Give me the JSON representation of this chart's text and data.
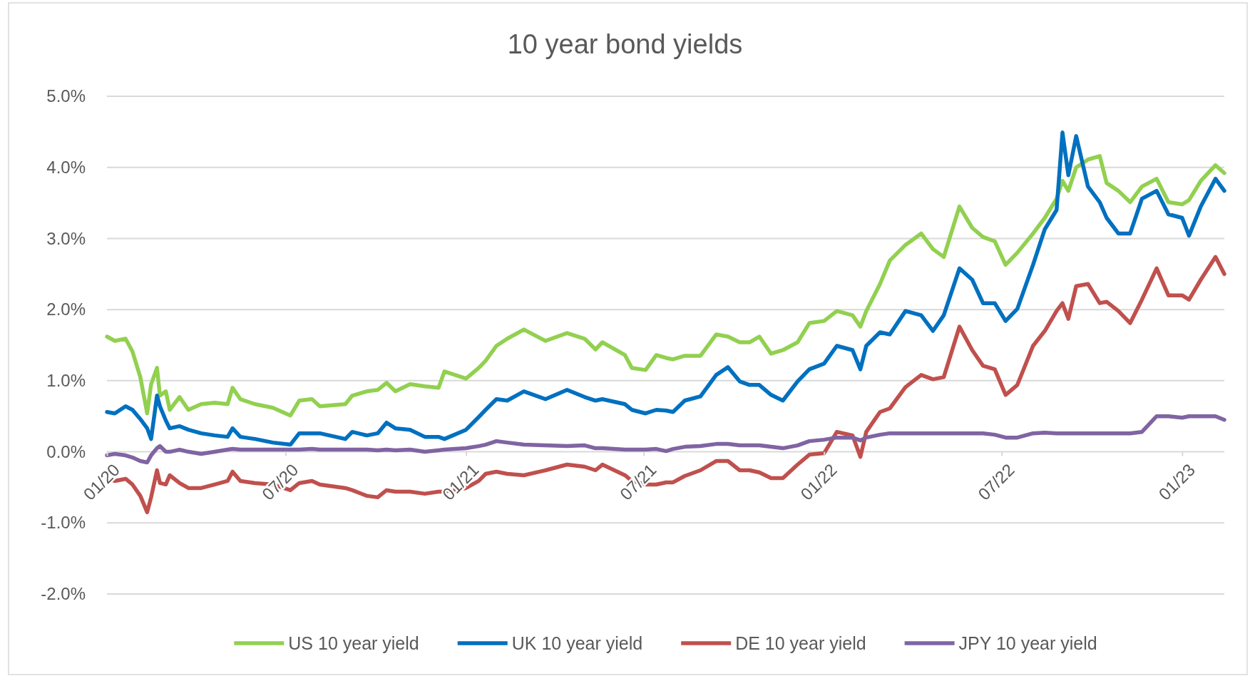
{
  "chart_data": {
    "type": "line",
    "title": "10 year bond yields",
    "x": [
      "2020-01-01",
      "2020-01-09",
      "2020-01-20",
      "2020-01-27",
      "2020-02-04",
      "2020-02-11",
      "2020-02-15",
      "2020-02-21",
      "2020-02-24",
      "2020-03-01",
      "2020-03-05",
      "2020-03-15",
      "2020-03-24",
      "2020-04-06",
      "2020-04-20",
      "2020-05-03",
      "2020-05-08",
      "2020-05-16",
      "2020-05-31",
      "2020-06-18",
      "2020-07-06",
      "2020-07-15",
      "2020-07-28",
      "2020-08-05",
      "2020-08-31",
      "2020-09-07",
      "2020-09-22",
      "2020-10-03",
      "2020-10-12",
      "2020-10-21",
      "2020-11-05",
      "2020-11-20",
      "2020-12-04",
      "2020-12-10",
      "2021-01-01",
      "2021-01-14",
      "2021-01-21",
      "2021-02-01",
      "2021-02-12",
      "2021-03-01",
      "2021-03-23",
      "2021-04-14",
      "2021-05-02",
      "2021-05-13",
      "2021-05-20",
      "2021-06-12",
      "2021-06-19",
      "2021-07-03",
      "2021-07-14",
      "2021-07-24",
      "2021-07-31",
      "2021-08-12",
      "2021-08-28",
      "2021-09-13",
      "2021-09-25",
      "2021-10-07",
      "2021-10-17",
      "2021-10-27",
      "2021-11-08",
      "2021-11-20",
      "2021-12-05",
      "2021-12-17",
      "2022-01-01",
      "2022-01-14",
      "2022-01-30",
      "2022-02-07",
      "2022-02-13",
      "2022-02-27",
      "2022-03-09",
      "2022-03-25",
      "2022-04-10",
      "2022-04-22",
      "2022-05-03",
      "2022-05-19",
      "2022-06-01",
      "2022-06-12",
      "2022-06-24",
      "2022-07-05",
      "2022-07-17",
      "2022-08-02",
      "2022-08-14",
      "2022-08-26",
      "2022-09-01",
      "2022-09-07",
      "2022-09-15",
      "2022-09-27",
      "2022-10-09",
      "2022-10-16",
      "2022-10-28",
      "2022-11-09",
      "2022-11-21",
      "2022-12-06",
      "2022-12-18",
      "2023-01-01",
      "2023-01-08",
      "2023-01-20",
      "2023-02-04",
      "2023-02-13"
    ],
    "series": [
      {
        "name": "US 10 year yield",
        "color": "#92d050",
        "values": [
          1.62,
          1.56,
          1.59,
          1.41,
          1.05,
          0.54,
          0.95,
          1.18,
          0.79,
          0.85,
          0.59,
          0.77,
          0.59,
          0.67,
          0.69,
          0.67,
          0.9,
          0.74,
          0.67,
          0.62,
          0.51,
          0.72,
          0.74,
          0.64,
          0.67,
          0.79,
          0.85,
          0.87,
          0.97,
          0.85,
          0.95,
          0.92,
          0.9,
          1.13,
          1.03,
          1.18,
          1.28,
          1.49,
          1.59,
          1.72,
          1.56,
          1.67,
          1.59,
          1.44,
          1.54,
          1.36,
          1.18,
          1.15,
          1.36,
          1.32,
          1.3,
          1.35,
          1.35,
          1.65,
          1.62,
          1.54,
          1.54,
          1.62,
          1.38,
          1.43,
          1.54,
          1.81,
          1.84,
          1.98,
          1.92,
          1.76,
          1.98,
          2.36,
          2.69,
          2.91,
          3.07,
          2.85,
          2.74,
          3.45,
          3.15,
          3.02,
          2.96,
          2.63,
          2.8,
          3.07,
          3.29,
          3.56,
          3.81,
          3.67,
          4.0,
          4.11,
          4.16,
          3.78,
          3.67,
          3.51,
          3.73,
          3.84,
          3.51,
          3.48,
          3.54,
          3.81,
          4.03,
          3.92
        ]
      },
      {
        "name": "UK 10 year yield",
        "color": "#0070c0",
        "values": [
          0.56,
          0.54,
          0.64,
          0.59,
          0.46,
          0.33,
          0.18,
          0.79,
          0.64,
          0.44,
          0.33,
          0.36,
          0.31,
          0.26,
          0.23,
          0.21,
          0.33,
          0.21,
          0.18,
          0.13,
          0.1,
          0.26,
          0.26,
          0.26,
          0.18,
          0.28,
          0.23,
          0.26,
          0.41,
          0.33,
          0.31,
          0.21,
          0.21,
          0.18,
          0.31,
          0.49,
          0.59,
          0.74,
          0.72,
          0.85,
          0.74,
          0.87,
          0.77,
          0.72,
          0.74,
          0.67,
          0.59,
          0.54,
          0.59,
          0.58,
          0.56,
          0.72,
          0.78,
          1.08,
          1.19,
          0.99,
          0.94,
          0.94,
          0.8,
          0.72,
          0.99,
          1.16,
          1.24,
          1.49,
          1.43,
          1.16,
          1.49,
          1.68,
          1.65,
          1.98,
          1.92,
          1.7,
          1.92,
          2.58,
          2.42,
          2.09,
          2.09,
          1.84,
          2.01,
          2.63,
          3.13,
          3.4,
          4.49,
          3.89,
          4.44,
          3.73,
          3.51,
          3.29,
          3.07,
          3.07,
          3.56,
          3.67,
          3.34,
          3.29,
          3.04,
          3.45,
          3.84,
          3.67
        ]
      },
      {
        "name": "DE 10 year yield",
        "color": "#c0504d",
        "values": [
          -0.38,
          -0.41,
          -0.38,
          -0.46,
          -0.62,
          -0.85,
          -0.64,
          -0.26,
          -0.44,
          -0.46,
          -0.33,
          -0.44,
          -0.51,
          -0.51,
          -0.46,
          -0.41,
          -0.28,
          -0.41,
          -0.44,
          -0.46,
          -0.54,
          -0.44,
          -0.41,
          -0.46,
          -0.51,
          -0.54,
          -0.62,
          -0.64,
          -0.54,
          -0.56,
          -0.56,
          -0.59,
          -0.56,
          -0.56,
          -0.51,
          -0.41,
          -0.31,
          -0.28,
          -0.31,
          -0.33,
          -0.26,
          -0.18,
          -0.21,
          -0.26,
          -0.18,
          -0.33,
          -0.41,
          -0.46,
          -0.46,
          -0.43,
          -0.43,
          -0.34,
          -0.26,
          -0.13,
          -0.13,
          -0.26,
          -0.26,
          -0.29,
          -0.37,
          -0.37,
          -0.18,
          -0.04,
          -0.02,
          0.28,
          0.23,
          -0.07,
          0.28,
          0.56,
          0.61,
          0.91,
          1.08,
          1.02,
          1.05,
          1.76,
          1.43,
          1.21,
          1.16,
          0.8,
          0.94,
          1.49,
          1.7,
          1.98,
          2.09,
          1.87,
          2.33,
          2.36,
          2.09,
          2.11,
          1.98,
          1.81,
          2.14,
          2.58,
          2.2,
          2.2,
          2.14,
          2.42,
          2.74,
          2.5
        ]
      },
      {
        "name": "JPY 10 year yield",
        "color": "#8064a2",
        "values": [
          -0.05,
          -0.03,
          -0.05,
          -0.08,
          -0.13,
          -0.15,
          -0.05,
          0.05,
          0.08,
          0.0,
          0.0,
          0.03,
          0.0,
          -0.03,
          0.0,
          0.03,
          0.04,
          0.03,
          0.03,
          0.03,
          0.03,
          0.03,
          0.04,
          0.03,
          0.03,
          0.03,
          0.03,
          0.02,
          0.03,
          0.02,
          0.03,
          0.0,
          0.02,
          0.03,
          0.05,
          0.08,
          0.1,
          0.15,
          0.13,
          0.1,
          0.09,
          0.08,
          0.09,
          0.05,
          0.05,
          0.03,
          0.03,
          0.03,
          0.04,
          0.01,
          0.04,
          0.07,
          0.08,
          0.11,
          0.11,
          0.09,
          0.09,
          0.09,
          0.07,
          0.05,
          0.09,
          0.15,
          0.17,
          0.2,
          0.2,
          0.16,
          0.2,
          0.24,
          0.26,
          0.26,
          0.26,
          0.26,
          0.26,
          0.26,
          0.26,
          0.26,
          0.24,
          0.2,
          0.2,
          0.26,
          0.27,
          0.26,
          0.26,
          0.26,
          0.26,
          0.26,
          0.26,
          0.26,
          0.26,
          0.26,
          0.28,
          0.5,
          0.5,
          0.48,
          0.5,
          0.5,
          0.5,
          0.45
        ]
      }
    ],
    "xlim": [
      "2020-01-01",
      "2023-02-13"
    ],
    "xticks": [
      {
        "value": "2020-01-01",
        "label": "01/20"
      },
      {
        "value": "2020-07-01",
        "label": "07/20"
      },
      {
        "value": "2021-01-01",
        "label": "01/21"
      },
      {
        "value": "2021-07-01",
        "label": "07/21"
      },
      {
        "value": "2022-01-01",
        "label": "01/22"
      },
      {
        "value": "2022-07-01",
        "label": "07/22"
      },
      {
        "value": "2023-01-01",
        "label": "01/23"
      }
    ],
    "ylim": [
      -2,
      5
    ],
    "yticks": [
      {
        "value": -2,
        "label": "-2.0%"
      },
      {
        "value": -1,
        "label": "-1.0%"
      },
      {
        "value": 0,
        "label": "0.0%"
      },
      {
        "value": 1,
        "label": "1.0%"
      },
      {
        "value": 2,
        "label": "2.0%"
      },
      {
        "value": 3,
        "label": "3.0%"
      },
      {
        "value": 4,
        "label": "4.0%"
      },
      {
        "value": 5,
        "label": "5.0%"
      }
    ],
    "grid": "y",
    "legend": "bottom"
  }
}
